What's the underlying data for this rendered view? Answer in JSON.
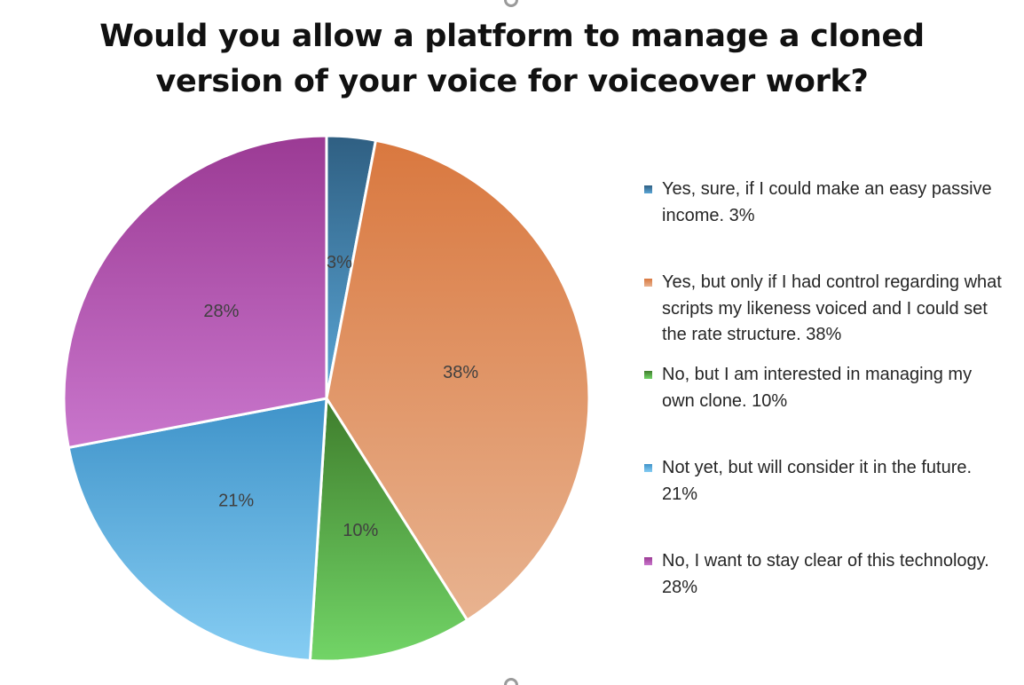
{
  "chart_data": {
    "type": "pie",
    "title_lines": [
      "Would you allow a platform to manage a cloned",
      "version of your voice for voiceover work?"
    ],
    "legend_position": "right",
    "slices": [
      {
        "legend_label": "Yes, sure, if I could make an easy passive income. 3%",
        "value": 3,
        "data_label": "3%",
        "color_top": "#2f5f82",
        "color_bottom": "#5aa6d6"
      },
      {
        "legend_label": "Yes, but only if I had control regarding what scripts my likeness voiced and I could set the rate structure. 38%",
        "value": 38,
        "data_label": "38%",
        "color_top": "#d9783f",
        "color_bottom": "#e8b390"
      },
      {
        "legend_label": "No, but I am interested in managing my own clone. 10%",
        "value": 10,
        "data_label": "10%",
        "color_top": "#3f7d2c",
        "color_bottom": "#72d567"
      },
      {
        "legend_label": "Not yet, but will consider it in the future. 21%",
        "value": 21,
        "data_label": "21%",
        "color_top": "#3f93c9",
        "color_bottom": "#86cdf3"
      },
      {
        "legend_label": "No, I want to stay clear of this technology. 28%",
        "value": 28,
        "data_label": "28%",
        "color_top": "#9b3a94",
        "color_bottom": "#c976cc"
      }
    ]
  }
}
